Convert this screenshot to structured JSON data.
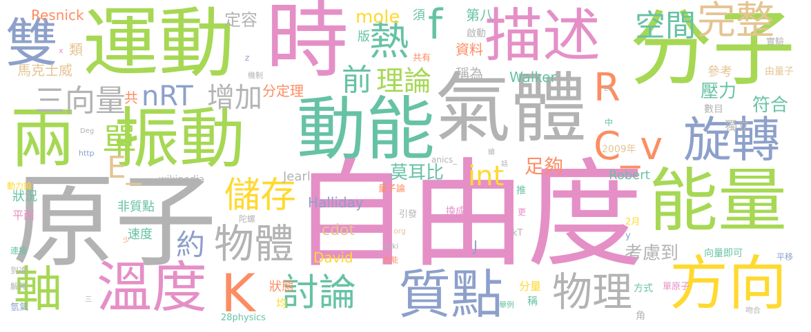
{
  "palette": {
    "pink": "#e58fc7",
    "green": "#a6d854",
    "gray": "#b3b3b3",
    "teal": "#66c2a5",
    "blue": "#8da0cb",
    "orange": "#fc8d62",
    "yellow": "#ffd92f",
    "tan": "#e5c494"
  },
  "words": [
    {
      "text": "自由度",
      "color": "pink"
    },
    {
      "text": "原子",
      "color": "gray"
    },
    {
      "text": "分子",
      "color": "green"
    },
    {
      "text": "氣體",
      "color": "gray"
    },
    {
      "text": "時",
      "color": "pink"
    },
    {
      "text": "運動",
      "color": "green"
    },
    {
      "text": "描述",
      "color": "pink"
    },
    {
      "text": "動能",
      "color": "teal"
    },
    {
      "text": "振動",
      "color": "green"
    },
    {
      "text": "能量",
      "color": "green"
    },
    {
      "text": "兩",
      "color": "green"
    },
    {
      "text": "溫度",
      "color": "pink"
    },
    {
      "text": "方向",
      "color": "yellow"
    },
    {
      "text": "質點",
      "color": "blue"
    },
    {
      "text": "旋轉",
      "color": "blue"
    },
    {
      "text": "雙",
      "color": "blue"
    },
    {
      "text": "完整",
      "color": "tan"
    },
    {
      "text": "熱",
      "color": "teal"
    },
    {
      "text": "f",
      "color": "teal"
    },
    {
      "text": "R",
      "color": "orange"
    },
    {
      "text": "C_v",
      "color": "orange"
    },
    {
      "text": "K",
      "color": "orange"
    },
    {
      "text": "軸",
      "color": "green"
    },
    {
      "text": "物體",
      "color": "gray"
    },
    {
      "text": "物理",
      "color": "gray"
    },
    {
      "text": "儲存",
      "color": "yellow"
    },
    {
      "text": "討論",
      "color": "teal"
    },
    {
      "text": "單",
      "color": "green"
    },
    {
      "text": "空間",
      "color": "teal"
    },
    {
      "text": "三向量",
      "color": "gray"
    },
    {
      "text": "nRT",
      "color": "blue"
    },
    {
      "text": "增加",
      "color": "gray"
    },
    {
      "text": "前",
      "color": "teal"
    },
    {
      "text": "理論",
      "color": "green"
    },
    {
      "text": "E_",
      "color": "tan"
    },
    {
      "text": "約",
      "color": "blue"
    },
    {
      "text": "int",
      "color": "yellow"
    },
    {
      "text": "足夠",
      "color": "orange"
    },
    {
      "text": "莫耳比",
      "color": "teal"
    },
    {
      "text": "壓力",
      "color": "teal"
    },
    {
      "text": "符合",
      "color": "teal"
    },
    {
      "text": "考慮到",
      "color": "gray"
    },
    {
      "text": "mole",
      "color": "yellow"
    },
    {
      "text": "定容",
      "color": "gray"
    },
    {
      "text": "Resnick",
      "color": "orange"
    },
    {
      "text": "馬克士威",
      "color": "tan"
    },
    {
      "text": "類",
      "color": "tan"
    },
    {
      "text": "分定理",
      "color": "orange"
    },
    {
      "text": "共",
      "color": "orange"
    },
    {
      "text": "第八",
      "color": "teal"
    },
    {
      "text": "須",
      "color": "teal"
    },
    {
      "text": "版",
      "color": "teal"
    },
    {
      "text": "資料",
      "color": "orange"
    },
    {
      "text": "啟動",
      "color": "gray"
    },
    {
      "text": "共有",
      "color": "orange"
    },
    {
      "text": "稱為",
      "color": "gray"
    },
    {
      "text": "Walker",
      "color": "teal"
    },
    {
      "text": "參考",
      "color": "tan"
    },
    {
      "text": "實驗",
      "color": "gray"
    },
    {
      "text": "由量子",
      "color": "tan"
    },
    {
      "text": "數目",
      "color": "gray"
    },
    {
      "text": "獨立",
      "color": "gray"
    },
    {
      "text": "2009年",
      "color": "tan"
    },
    {
      "text": "Robert",
      "color": "teal"
    },
    {
      "text": "Jearl",
      "color": "gray"
    },
    {
      "text": "量子論",
      "color": "orange"
    },
    {
      "text": "Halliday",
      "color": "blue"
    },
    {
      "text": "cdot",
      "color": "tan"
    },
    {
      "text": "David",
      "color": "yellow"
    },
    {
      "text": "J",
      "color": "blue"
    },
    {
      "text": "換成",
      "color": "pink"
    },
    {
      "text": "引發",
      "color": "gray"
    },
    {
      "text": "狀況",
      "color": "teal"
    },
    {
      "text": "非質點",
      "color": "teal"
    },
    {
      "text": "平面",
      "color": "pink"
    },
    {
      "text": "速度",
      "color": "teal"
    },
    {
      "text": "陀螺",
      "color": "gray"
    },
    {
      "text": "狀態",
      "color": "orange"
    },
    {
      "text": "wikipedia",
      "color": "gray"
    },
    {
      "text": "動力論",
      "color": "yellow"
    },
    {
      "text": "連接",
      "color": "teal"
    },
    {
      "text": "到達",
      "color": "gray"
    },
    {
      "text": "解釋",
      "color": "gray"
    },
    {
      "text": "氫氣",
      "color": "blue"
    },
    {
      "text": "28physics",
      "color": "teal"
    },
    {
      "text": "均",
      "color": "yellow"
    },
    {
      "text": "分量",
      "color": "yellow"
    },
    {
      "text": "稱",
      "color": "teal"
    },
    {
      "text": "單原子",
      "color": "pink"
    },
    {
      "text": "方式",
      "color": "teal"
    },
    {
      "text": "舉例",
      "color": "teal"
    },
    {
      "text": "吻合",
      "color": "gray"
    },
    {
      "text": "角",
      "color": "gray"
    },
    {
      "text": "向量即可",
      "color": "teal"
    },
    {
      "text": "平移",
      "color": "blue"
    },
    {
      "text": "kT",
      "color": "gray"
    },
    {
      "text": "y",
      "color": "blue"
    },
    {
      "text": "2月",
      "color": "yellow"
    },
    {
      "text": "更",
      "color": "pink"
    },
    {
      "text": "推",
      "color": "teal"
    },
    {
      "text": "話",
      "color": "gray"
    },
    {
      "text": "續",
      "color": "gray"
    },
    {
      "text": "anics_",
      "color": "gray"
    },
    {
      "text": "http",
      "color": "blue"
    },
    {
      "text": "Deg",
      "color": "gray"
    },
    {
      "text": "機制",
      "color": "gray"
    },
    {
      "text": "z",
      "color": "blue"
    },
    {
      "text": "x",
      "color": "pink"
    },
    {
      "text": "中",
      "color": "teal"
    },
    {
      "text": "en",
      "color": "gray"
    },
    {
      "text": "wiki",
      "color": "gray"
    },
    {
      "text": "內能",
      "color": "orange"
    },
    {
      "text": "org",
      "color": "tan"
    },
    {
      "text": "少",
      "color": "orange"
    },
    {
      "text": "三",
      "color": "gray"
    }
  ]
}
